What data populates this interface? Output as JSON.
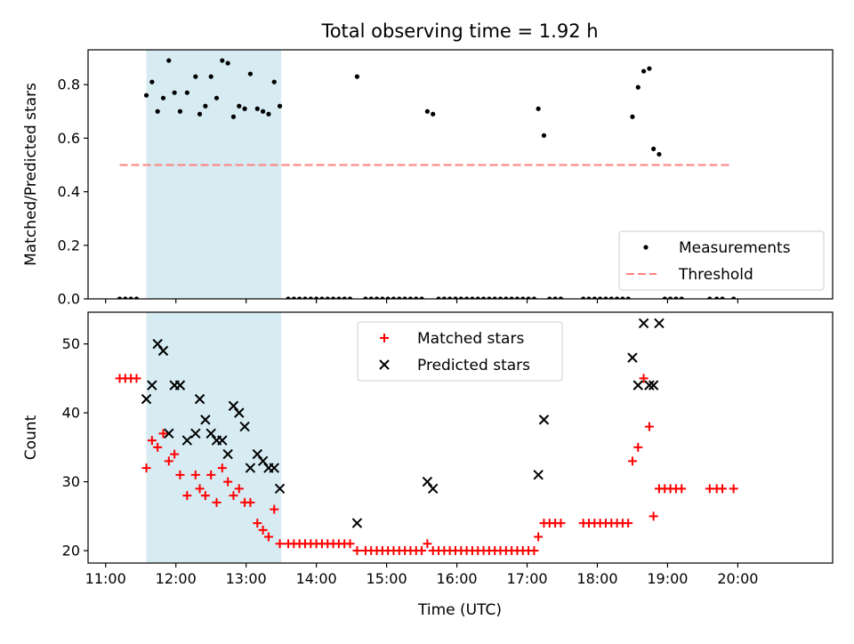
{
  "chart_data": {
    "title": "Total observing time = 1.92 h",
    "xlabel": "Time (UTC)",
    "x_unit": "hours UTC",
    "xlim": [
      10.75,
      21.35
    ],
    "xticks": [
      {
        "value": 11,
        "label": "11:00"
      },
      {
        "value": 12,
        "label": "12:00"
      },
      {
        "value": 13,
        "label": "13:00"
      },
      {
        "value": 14,
        "label": "14:00"
      },
      {
        "value": 15,
        "label": "15:00"
      },
      {
        "value": 16,
        "label": "16:00"
      },
      {
        "value": 17,
        "label": "17:00"
      },
      {
        "value": 18,
        "label": "18:00"
      },
      {
        "value": 19,
        "label": "19:00"
      },
      {
        "value": 20,
        "label": "20:00"
      }
    ],
    "observing_window": {
      "start": 11.58,
      "end": 13.5,
      "color": "#add8e6"
    },
    "panels": [
      {
        "type": "scatter",
        "ylabel": "Matched/Predicted stars",
        "ylim": [
          0,
          0.93
        ],
        "yticks": [
          {
            "value": 0,
            "label": "0.0"
          },
          {
            "value": 0.2,
            "label": "0.2"
          },
          {
            "value": 0.4,
            "label": "0.4"
          },
          {
            "value": 0.6,
            "label": "0.6"
          },
          {
            "value": 0.8,
            "label": "0.8"
          }
        ],
        "legend": {
          "position": "lower-right",
          "entries": [
            "Measurements",
            "Threshold"
          ]
        },
        "threshold": {
          "name": "Threshold",
          "value": 0.5,
          "x_range": [
            11.2,
            19.92
          ],
          "color": "#ff7f7f"
        },
        "series": [
          {
            "name": "Measurements",
            "marker": "dot",
            "color": "#000000",
            "x": [
              11.2,
              11.28,
              11.36,
              11.44,
              11.58,
              11.66,
              11.74,
              11.82,
              11.9,
              11.98,
              12.06,
              12.16,
              12.28,
              12.34,
              12.42,
              12.5,
              12.58,
              12.66,
              12.74,
              12.82,
              12.9,
              12.98,
              13.06,
              13.16,
              13.24,
              13.32,
              13.4,
              13.48,
              13.6,
              13.68,
              13.76,
              13.84,
              13.92,
              14.0,
              14.08,
              14.16,
              14.24,
              14.32,
              14.4,
              14.48,
              14.58,
              14.7,
              14.78,
              14.86,
              14.94,
              15.02,
              15.1,
              15.18,
              15.26,
              15.34,
              15.42,
              15.5,
              15.58,
              15.66,
              15.74,
              15.82,
              15.9,
              15.98,
              16.06,
              16.14,
              16.22,
              16.3,
              16.38,
              16.46,
              16.54,
              16.62,
              16.7,
              16.78,
              16.86,
              16.94,
              17.02,
              17.1,
              17.16,
              17.24,
              17.32,
              17.4,
              17.48,
              17.8,
              17.88,
              17.96,
              18.04,
              18.12,
              18.2,
              18.28,
              18.36,
              18.44,
              18.5,
              18.58,
              18.66,
              18.74,
              18.8,
              18.88,
              18.96,
              19.04,
              19.12,
              19.2,
              19.6,
              19.7,
              19.78,
              19.94
            ],
            "y": [
              0,
              0,
              0,
              0,
              0.76,
              0.81,
              0.7,
              0.75,
              0.89,
              0.77,
              0.7,
              0.77,
              0.83,
              0.69,
              0.72,
              0.83,
              0.75,
              0.89,
              0.88,
              0.68,
              0.72,
              0.71,
              0.84,
              0.71,
              0.7,
              0.69,
              0.81,
              0.72,
              0,
              0,
              0,
              0,
              0,
              0,
              0,
              0,
              0,
              0,
              0,
              0,
              0.83,
              0,
              0,
              0,
              0,
              0,
              0,
              0,
              0,
              0,
              0,
              0,
              0.7,
              0.69,
              0,
              0,
              0,
              0,
              0,
              0,
              0,
              0,
              0,
              0,
              0,
              0,
              0,
              0,
              0,
              0,
              0,
              0,
              0.71,
              0.61,
              0,
              0,
              0,
              0,
              0,
              0,
              0,
              0,
              0,
              0,
              0,
              0,
              0.68,
              0.79,
              0.85,
              0.86,
              0.56,
              0.54,
              0,
              0,
              0,
              0,
              0,
              0,
              0,
              0
            ]
          }
        ]
      },
      {
        "type": "scatter",
        "ylabel": "Count",
        "ylim": [
          18.2,
          54.6
        ],
        "yticks": [
          {
            "value": 20,
            "label": "20"
          },
          {
            "value": 30,
            "label": "30"
          },
          {
            "value": 40,
            "label": "40"
          },
          {
            "value": 50,
            "label": "50"
          }
        ],
        "legend": {
          "position": "upper-center",
          "entries": [
            "Matched stars",
            "Predicted stars"
          ]
        },
        "series": [
          {
            "name": "Matched stars",
            "marker": "plus",
            "color": "#ff0000",
            "x": [
              11.2,
              11.28,
              11.36,
              11.44,
              11.58,
              11.66,
              11.74,
              11.82,
              11.9,
              11.98,
              12.06,
              12.16,
              12.28,
              12.34,
              12.42,
              12.5,
              12.58,
              12.66,
              12.74,
              12.82,
              12.9,
              12.98,
              13.06,
              13.16,
              13.24,
              13.32,
              13.4,
              13.48,
              13.6,
              13.68,
              13.76,
              13.84,
              13.92,
              14.0,
              14.08,
              14.16,
              14.24,
              14.32,
              14.4,
              14.48,
              14.58,
              14.7,
              14.78,
              14.86,
              14.94,
              15.02,
              15.1,
              15.18,
              15.26,
              15.34,
              15.42,
              15.5,
              15.58,
              15.66,
              15.74,
              15.82,
              15.9,
              15.98,
              16.06,
              16.14,
              16.22,
              16.3,
              16.38,
              16.46,
              16.54,
              16.62,
              16.7,
              16.78,
              16.86,
              16.94,
              17.02,
              17.1,
              17.16,
              17.24,
              17.32,
              17.4,
              17.48,
              17.8,
              17.88,
              17.96,
              18.04,
              18.12,
              18.2,
              18.28,
              18.36,
              18.44,
              18.5,
              18.58,
              18.66,
              18.74,
              18.8,
              18.88,
              18.96,
              19.04,
              19.12,
              19.2,
              19.6,
              19.7,
              19.78,
              19.94
            ],
            "y": [
              45,
              45,
              45,
              45,
              32,
              36,
              35,
              37,
              33,
              34,
              31,
              28,
              31,
              29,
              28,
              31,
              27,
              32,
              30,
              28,
              29,
              27,
              27,
              24,
              23,
              22,
              26,
              21,
              21,
              21,
              21,
              21,
              21,
              21,
              21,
              21,
              21,
              21,
              21,
              21,
              20,
              20,
              20,
              20,
              20,
              20,
              20,
              20,
              20,
              20,
              20,
              20,
              21,
              20,
              20,
              20,
              20,
              20,
              20,
              20,
              20,
              20,
              20,
              20,
              20,
              20,
              20,
              20,
              20,
              20,
              20,
              20,
              22,
              24,
              24,
              24,
              24,
              24,
              24,
              24,
              24,
              24,
              24,
              24,
              24,
              24,
              33,
              35,
              45,
              38,
              25,
              29,
              29,
              29,
              29,
              29,
              29,
              29,
              29,
              29
            ]
          },
          {
            "name": "Predicted stars",
            "marker": "x",
            "color": "#000000",
            "x": [
              11.58,
              11.66,
              11.74,
              11.82,
              11.9,
              11.98,
              12.06,
              12.16,
              12.28,
              12.34,
              12.42,
              12.5,
              12.58,
              12.66,
              12.74,
              12.82,
              12.9,
              12.98,
              13.06,
              13.16,
              13.24,
              13.32,
              13.4,
              13.48,
              14.58,
              15.58,
              15.66,
              17.16,
              17.24,
              18.5,
              18.58,
              18.66,
              18.74,
              18.8,
              18.88
            ],
            "y": [
              42,
              44,
              50,
              49,
              37,
              44,
              44,
              36,
              37,
              42,
              39,
              37,
              36,
              36,
              34,
              41,
              40,
              38,
              32,
              34,
              33,
              32,
              32,
              29,
              24,
              30,
              29,
              31,
              39,
              48,
              44,
              53,
              44,
              44,
              53
            ]
          }
        ]
      }
    ]
  }
}
